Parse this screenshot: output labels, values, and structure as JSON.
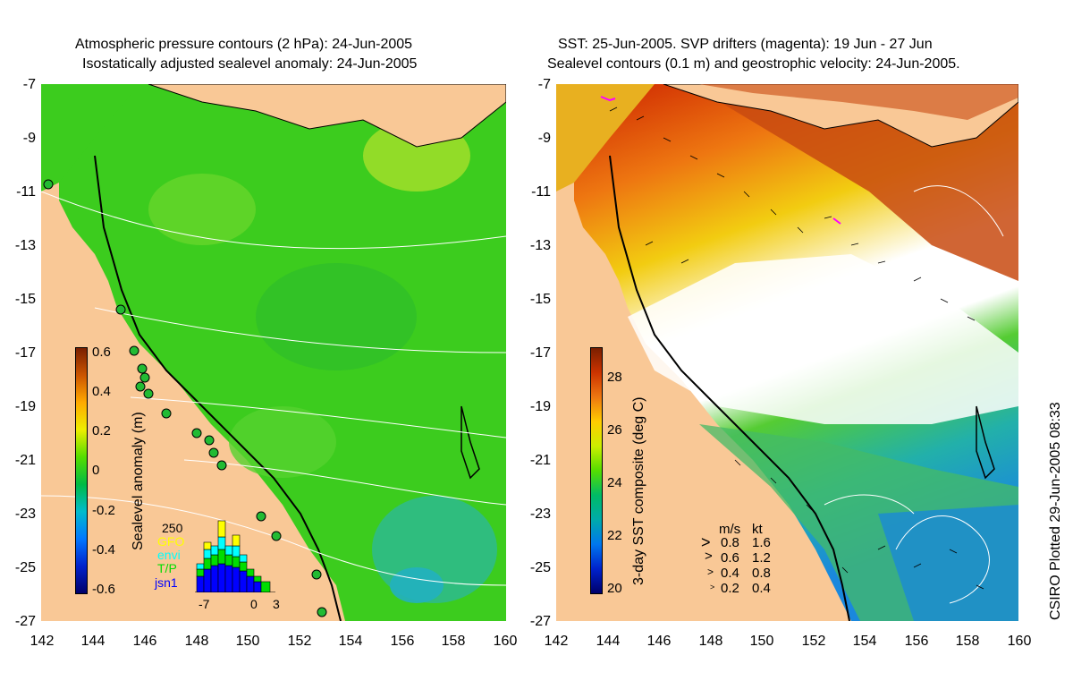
{
  "left_panel": {
    "title_line1": "Atmospheric pressure contours (2 hPa): 24-Jun-2005",
    "title_line2": "Isostatically adjusted sealevel anomaly: 24-Jun-2005",
    "colorbar_label": "Sealevel anomaly (m)",
    "colorbar_ticks": [
      "0.6",
      "0.4",
      "0.2",
      "0",
      "-0.2",
      "-0.4",
      "-0.6"
    ],
    "histogram": {
      "ymax_label": "250",
      "legend": [
        {
          "name": "GFO",
          "color": "#ffff00"
        },
        {
          "name": "envi",
          "color": "#00ffff"
        },
        {
          "name": "T/P",
          "color": "#00dd00"
        },
        {
          "name": "jsn1",
          "color": "#0000ff"
        }
      ],
      "xticks": [
        "-7",
        "0",
        "3"
      ]
    }
  },
  "right_panel": {
    "title_line1": "SST: 25-Jun-2005. SVP drifters (magenta): 19 Jun - 27 Jun",
    "title_line2": "Sealevel contours (0.1 m) and geostrophic velocity: 24-Jun-2005.",
    "colorbar_label": "3-day SST composite (deg C)",
    "colorbar_ticks": [
      "28",
      "26",
      "24",
      "22",
      "20"
    ],
    "velocity_legend": {
      "header_ms": "m/s",
      "header_kt": "kt",
      "rows": [
        {
          "ms": "0.8",
          "kt": "1.6"
        },
        {
          "ms": "0.6",
          "kt": "1.2"
        },
        {
          "ms": "0.4",
          "kt": "0.8"
        },
        {
          "ms": "0.2",
          "kt": "0.4"
        }
      ]
    }
  },
  "axes": {
    "y_ticks": [
      "-7",
      "-9",
      "-11",
      "-13",
      "-15",
      "-17",
      "-19",
      "-21",
      "-23",
      "-25",
      "-27"
    ],
    "x_ticks": [
      "142",
      "144",
      "146",
      "148",
      "150",
      "152",
      "154",
      "156",
      "158",
      "160"
    ]
  },
  "credit": "CSIRO Plotted 29-Jun-2005 08:33",
  "colors": {
    "land": "#f9c896",
    "sla_green": "#33cc22",
    "sst_white": "#ffffff",
    "sst_warm": "#cc4400"
  }
}
